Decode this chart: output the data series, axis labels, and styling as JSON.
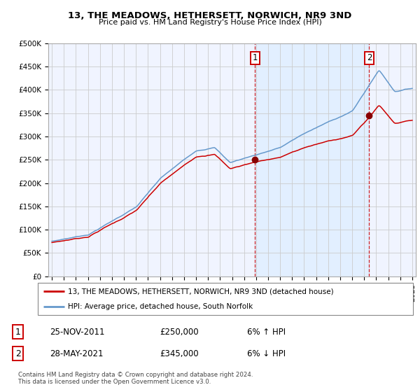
{
  "title1": "13, THE MEADOWS, HETHERSETT, NORWICH, NR9 3ND",
  "title2": "Price paid vs. HM Land Registry's House Price Index (HPI)",
  "legend_line1": "13, THE MEADOWS, HETHERSETT, NORWICH, NR9 3ND (detached house)",
  "legend_line2": "HPI: Average price, detached house, South Norfolk",
  "annotation1_date": "25-NOV-2011",
  "annotation1_price": "£250,000",
  "annotation1_hpi": "6% ↑ HPI",
  "annotation2_date": "28-MAY-2021",
  "annotation2_price": "£345,000",
  "annotation2_hpi": "6% ↓ HPI",
  "footnote": "Contains HM Land Registry data © Crown copyright and database right 2024.\nThis data is licensed under the Open Government Licence v3.0.",
  "price_color": "#cc0000",
  "hpi_color": "#6699cc",
  "shade_color": "#ddeeff",
  "ylim": [
    0,
    500000
  ],
  "yticks": [
    0,
    50000,
    100000,
    150000,
    200000,
    250000,
    300000,
    350000,
    400000,
    450000,
    500000
  ],
  "xlim_start": 1994.7,
  "xlim_end": 2025.3,
  "sale1_year": 2011.92,
  "sale2_year": 2021.42,
  "sale1_price": 250000,
  "sale2_price": 345000
}
